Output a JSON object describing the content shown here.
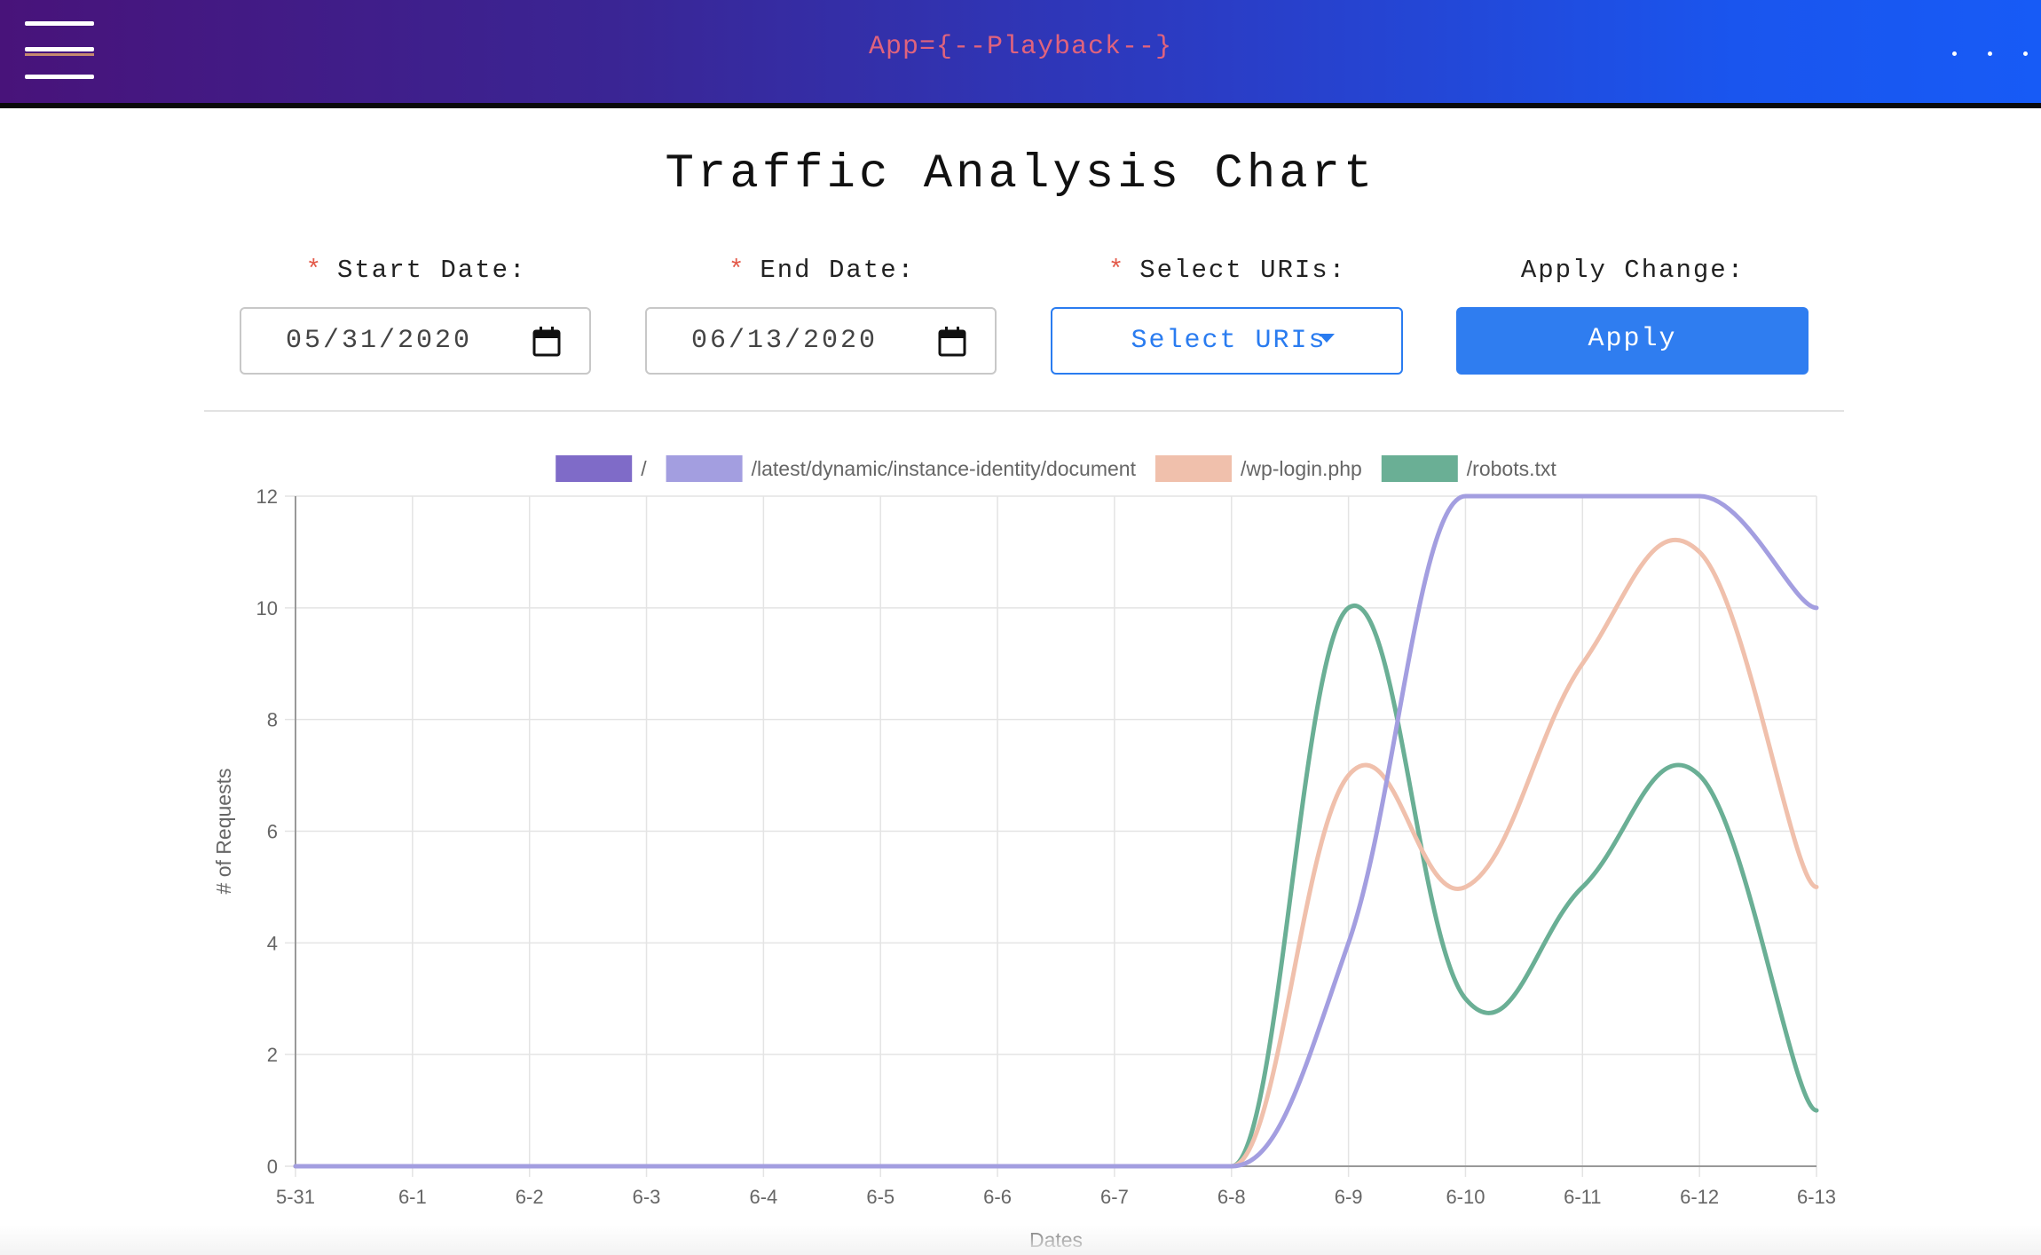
{
  "header": {
    "menu_icon": "hamburger-menu-icon",
    "app_title": "App={--Playback--}",
    "more_icon": "ellipsis-icon"
  },
  "page": {
    "title": "Traffic Analysis Chart"
  },
  "controls": {
    "start_date": {
      "required_mark": "*",
      "label": "Start Date:",
      "value": "05/31/2020",
      "icon": "calendar-icon"
    },
    "end_date": {
      "required_mark": "*",
      "label": "End Date:",
      "value": "06/13/2020",
      "icon": "calendar-icon"
    },
    "uris": {
      "required_mark": "*",
      "label": "Select URIs:",
      "button_label": "Select URIs",
      "icon": "caret-down-icon"
    },
    "apply": {
      "label": "Apply Change:",
      "button_label": "Apply"
    }
  },
  "colors": {
    "header_gradient_start": "#48137a",
    "header_gradient_end": "#175bf6",
    "primary": "#2f7df0",
    "required": "#e35a4a"
  },
  "chart_data": {
    "type": "line",
    "xlabel": "Dates",
    "ylabel": "# of Requests",
    "ylim": [
      0,
      12
    ],
    "yticks": [
      0,
      2,
      4,
      6,
      8,
      10,
      12
    ],
    "grid": true,
    "legend_position": "top",
    "categories": [
      "5-31",
      "6-1",
      "6-2",
      "6-3",
      "6-4",
      "6-5",
      "6-6",
      "6-7",
      "6-8",
      "6-9",
      "6-10",
      "6-11",
      "6-12",
      "6-13"
    ],
    "series": [
      {
        "name": "/",
        "color": "#7f6bc8",
        "line_visible": false,
        "values": [
          0,
          0,
          0,
          0,
          0,
          0,
          0,
          0,
          0,
          0,
          0,
          0,
          0,
          0
        ]
      },
      {
        "name": "/latest/dynamic/instance-identity/document",
        "color": "#a39ee0",
        "values": [
          0,
          0,
          0,
          0,
          0,
          0,
          0,
          0,
          0,
          4,
          12,
          12,
          12,
          10
        ]
      },
      {
        "name": "/wp-login.php",
        "color": "#f0c0ac",
        "values": [
          0,
          0,
          0,
          0,
          0,
          0,
          0,
          0,
          0,
          7,
          5,
          9,
          11,
          5
        ]
      },
      {
        "name": "/robots.txt",
        "color": "#6aaf95",
        "values": [
          0,
          0,
          0,
          0,
          0,
          0,
          0,
          0,
          0,
          10,
          3,
          5,
          7,
          1
        ]
      }
    ]
  }
}
